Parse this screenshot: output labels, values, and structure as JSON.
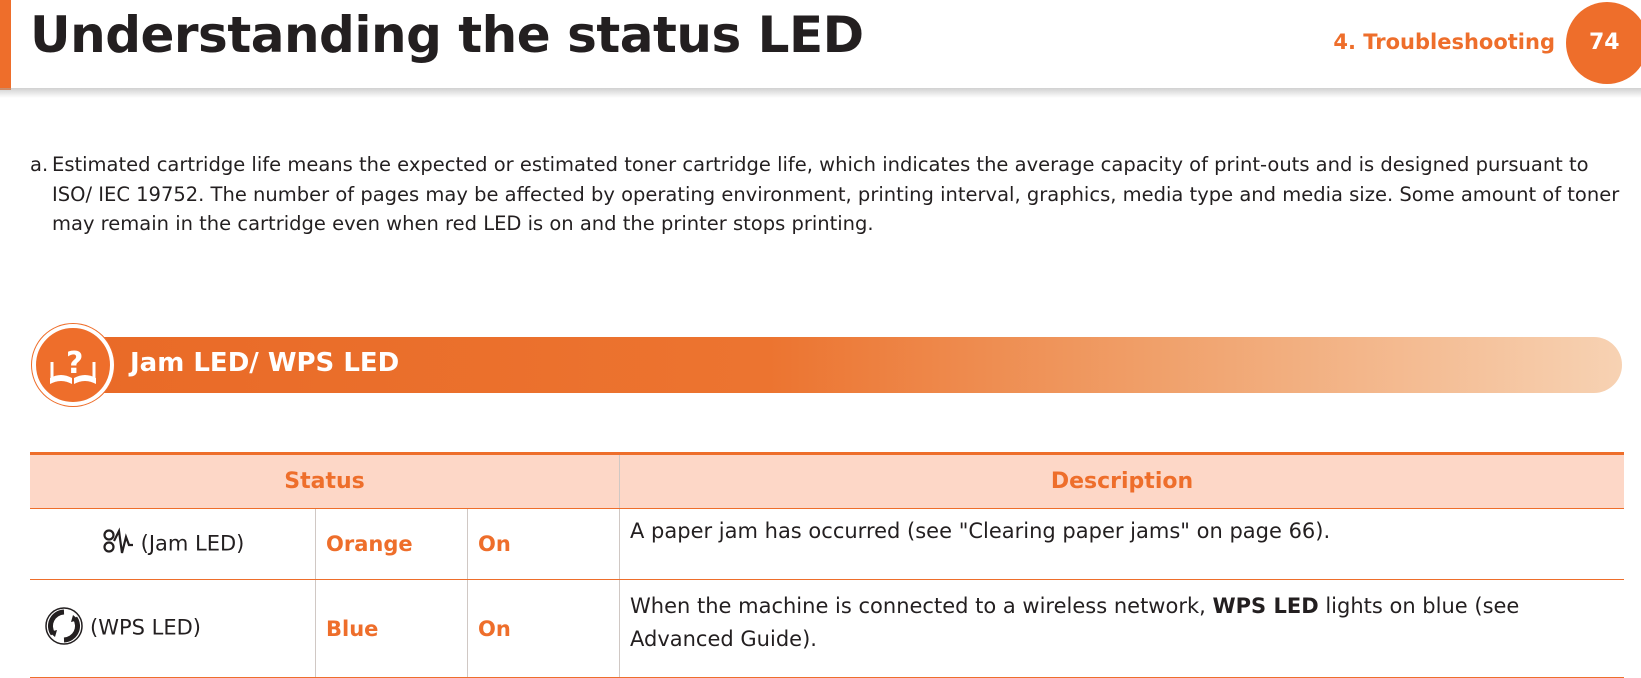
{
  "header": {
    "title": "Understanding the status LED",
    "chapter": "4.  Troubleshooting",
    "page_number": "74",
    "accent_color": "#ee6e2b"
  },
  "footnote": {
    "label": "a.",
    "text": "Estimated cartridge life means the expected or estimated toner cartridge life, which indicates the average capacity of print-outs and is designed pursuant to ISO/ IEC 19752. The number of pages may be affected by operating environment, printing interval, graphics, media type and media size. Some amount of toner may remain in the cartridge even when red LED is on and the printer stops printing."
  },
  "section": {
    "title": "Jam LED/ WPS LED",
    "icon": "help-book-icon"
  },
  "table": {
    "headers": {
      "status": "Status",
      "description": "Description"
    },
    "rows": [
      {
        "icon": "jam-icon",
        "label": "(Jam LED)",
        "color": "Orange",
        "state": "On",
        "description": "A paper jam has occurred (see \"Clearing paper jams\" on page 66)."
      },
      {
        "icon": "wps-icon",
        "label": "(WPS LED)",
        "color": "Blue",
        "state": "On",
        "description_before": "When the machine is connected to a wireless network, ",
        "description_bold": "WPS LED",
        "description_after": " lights on blue (see Advanced Guide)."
      }
    ]
  }
}
